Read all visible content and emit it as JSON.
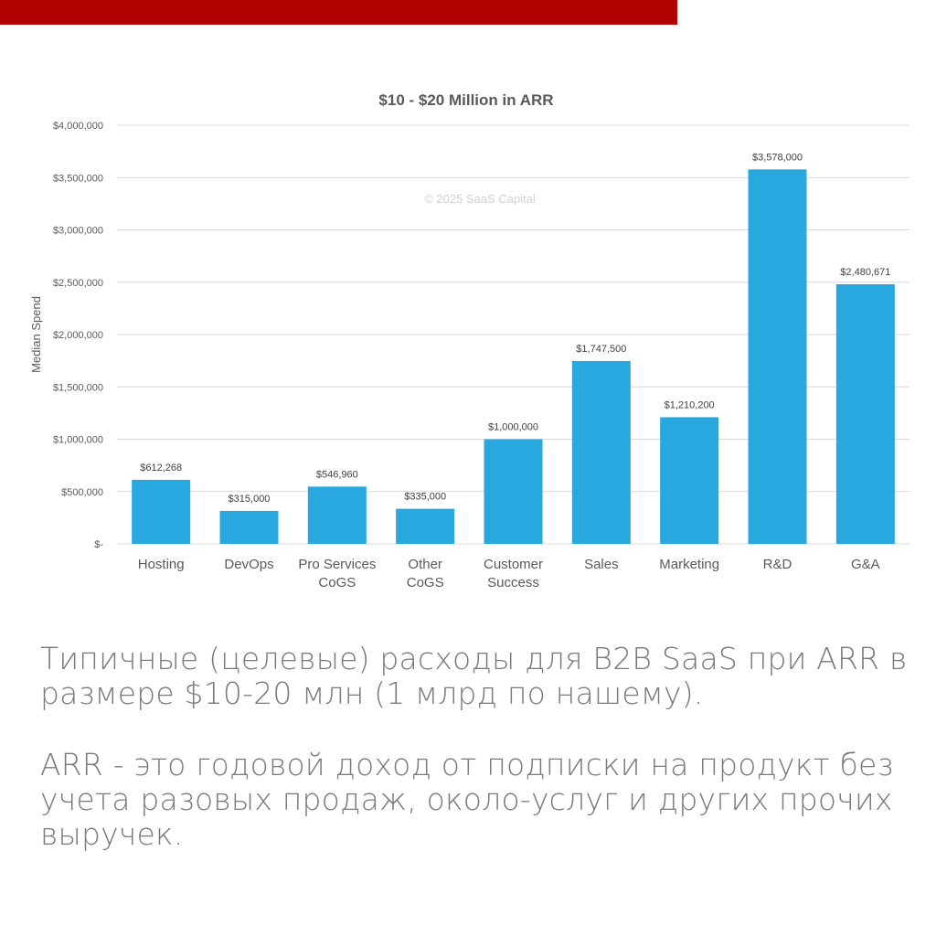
{
  "colors": {
    "accent_bar": "#b00000",
    "bar": "#29a8e0",
    "grid": "#d9d9d9",
    "axis_text": "#595959",
    "watermark": "#d0d0d0"
  },
  "chart_data": {
    "type": "bar",
    "title": "$10 - $20 Million in ARR",
    "watermark": "© 2025 SaaS Capital",
    "ylabel": "Median Spend",
    "xlabel": "",
    "ylim": [
      0,
      4000000
    ],
    "y_ticks": [
      {
        "value": 0,
        "label": "$-"
      },
      {
        "value": 500000,
        "label": "$500,000"
      },
      {
        "value": 1000000,
        "label": "$1,000,000"
      },
      {
        "value": 1500000,
        "label": "$1,500,000"
      },
      {
        "value": 2000000,
        "label": "$2,000,000"
      },
      {
        "value": 2500000,
        "label": "$2,500,000"
      },
      {
        "value": 3000000,
        "label": "$3,000,000"
      },
      {
        "value": 3500000,
        "label": "$3,500,000"
      },
      {
        "value": 4000000,
        "label": "$4,000,000"
      }
    ],
    "grid": true,
    "legend": "none",
    "categories": [
      [
        "Hosting"
      ],
      [
        "DevOps"
      ],
      [
        "Pro Services",
        "CoGS"
      ],
      [
        "Other",
        "CoGS"
      ],
      [
        "Customer",
        "Success"
      ],
      [
        "Sales"
      ],
      [
        "Marketing"
      ],
      [
        "R&D"
      ],
      [
        "G&A"
      ]
    ],
    "values": [
      612268,
      315000,
      546960,
      335000,
      1000000,
      1747500,
      1210200,
      3578000,
      2480671
    ],
    "data_labels": [
      "$612,268",
      "$315,000",
      "$546,960",
      "$335,000",
      "$1,000,000",
      "$1,747,500",
      "$1,210,200",
      "$3,578,000",
      "$2,480,671"
    ]
  },
  "captions": {
    "paragraph_1": "Типичные (целевые) расходы для B2B SaaS при ARR в размере $10-20 млн (1 млрд по нашему).",
    "paragraph_2": "ARR - это годовой доход от подписки на продукт без учета разовых продаж, около-услуг и других прочих выручек."
  }
}
